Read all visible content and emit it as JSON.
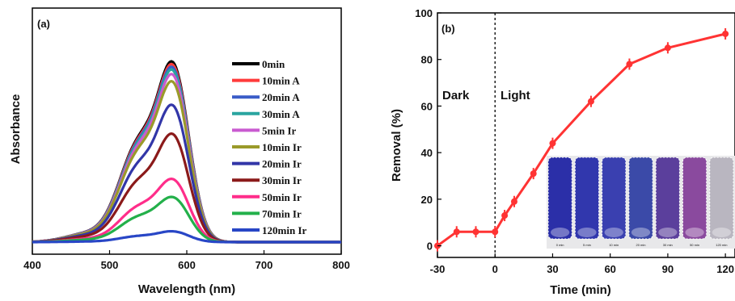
{
  "chart_data": [
    {
      "type": "line",
      "panel_label": "(a)",
      "xlabel": "Wavelength (nm)",
      "ylabel": "Absorbance",
      "xlim": [
        400,
        800
      ],
      "x_ticks": [
        400,
        500,
        600,
        700,
        800
      ],
      "y_ticks_shown": false,
      "legend_position": "right",
      "peak_wavelength": 584,
      "series": [
        {
          "name": "0min",
          "color": "#000000",
          "peak": 1.0
        },
        {
          "name": "10min A",
          "color": "#ff3b3b",
          "peak": 0.985
        },
        {
          "name": "20min A",
          "color": "#3a5cc8",
          "peak": 0.97
        },
        {
          "name": "30min A",
          "color": "#2aa5a0",
          "peak": 0.955
        },
        {
          "name": "5min Ir",
          "color": "#c95bd0",
          "peak": 0.93
        },
        {
          "name": "10min Ir",
          "color": "#9a9a2a",
          "peak": 0.89
        },
        {
          "name": "20min Ir",
          "color": "#3236a8",
          "peak": 0.76
        },
        {
          "name": "30min Ir",
          "color": "#8b1a1a",
          "peak": 0.6
        },
        {
          "name": "50min Ir",
          "color": "#ff2d8a",
          "peak": 0.35
        },
        {
          "name": "70min Ir",
          "color": "#23b04a",
          "peak": 0.25
        },
        {
          "name": "120min Ir",
          "color": "#2846c6",
          "peak": 0.06
        }
      ]
    },
    {
      "type": "line",
      "panel_label": "(b)",
      "xlabel": "Time (min)",
      "ylabel": "Removal (%)",
      "xlim": [
        -30,
        125
      ],
      "ylim": [
        -5,
        100
      ],
      "x_ticks": [
        -30,
        0,
        30,
        60,
        90,
        120
      ],
      "y_ticks": [
        0,
        20,
        40,
        60,
        80,
        100
      ],
      "annotations": [
        "Dark",
        "Light"
      ],
      "divider_x": 0,
      "color": "#ff3333",
      "x": [
        -30,
        -20,
        -10,
        0,
        5,
        10,
        20,
        30,
        50,
        70,
        90,
        120
      ],
      "y": [
        0,
        6,
        6,
        6,
        13,
        19,
        31,
        44,
        62,
        78,
        85,
        91
      ],
      "photo_labels": [
        "0 min",
        "5 min",
        "10 min",
        "20 min",
        "30 min",
        "50 min",
        "120 min"
      ]
    }
  ]
}
